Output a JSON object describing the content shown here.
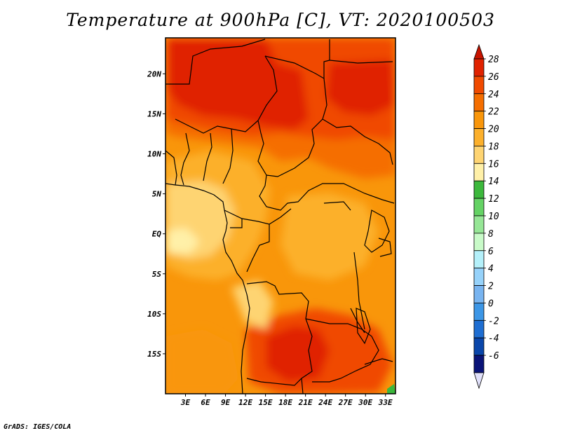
{
  "title": "Temperature at 900hPa [C], VT: 2020100503",
  "footer": "GrADS: IGES/COLA",
  "map": {
    "lon_range_deg": [
      0,
      34.5
    ],
    "lat_range_deg": [
      -20,
      24.5
    ],
    "lon_ticks": [
      {
        "v": 3,
        "label": "3E"
      },
      {
        "v": 6,
        "label": "6E"
      },
      {
        "v": 9,
        "label": "9E"
      },
      {
        "v": 12,
        "label": "12E"
      },
      {
        "v": 15,
        "label": "15E"
      },
      {
        "v": 18,
        "label": "18E"
      },
      {
        "v": 21,
        "label": "21E"
      },
      {
        "v": 24,
        "label": "24E"
      },
      {
        "v": 27,
        "label": "27E"
      },
      {
        "v": 30,
        "label": "30E"
      },
      {
        "v": 33,
        "label": "33E"
      }
    ],
    "lat_ticks": [
      {
        "v": 20,
        "label": "20N"
      },
      {
        "v": 15,
        "label": "15N"
      },
      {
        "v": 10,
        "label": "10N"
      },
      {
        "v": 5,
        "label": "5N"
      },
      {
        "v": 0,
        "label": "EQ"
      },
      {
        "v": -5,
        "label": "5S"
      },
      {
        "v": -10,
        "label": "10S"
      },
      {
        "v": -15,
        "label": "15S"
      }
    ]
  },
  "colorbar": {
    "labels": [
      "28",
      "26",
      "24",
      "22",
      "20",
      "18",
      "16",
      "14",
      "12",
      "10",
      "8",
      "6",
      "4",
      "2",
      "0",
      "-2",
      "-4",
      "-6"
    ],
    "colors": [
      "#e02200",
      "#f04a00",
      "#f56e00",
      "#f9960a",
      "#fcb02c",
      "#fed472",
      "#fff0a8",
      "#3cb83c",
      "#64d264",
      "#96e696",
      "#c8fac8",
      "#b4f0fa",
      "#96d2fa",
      "#78b4f0",
      "#3c96e6",
      "#1e6ed2",
      "#0a46aa",
      "#0a1478"
    ],
    "top_triangle_color": "#c81400",
    "bottom_triangle_color": "#e0e0fa"
  }
}
